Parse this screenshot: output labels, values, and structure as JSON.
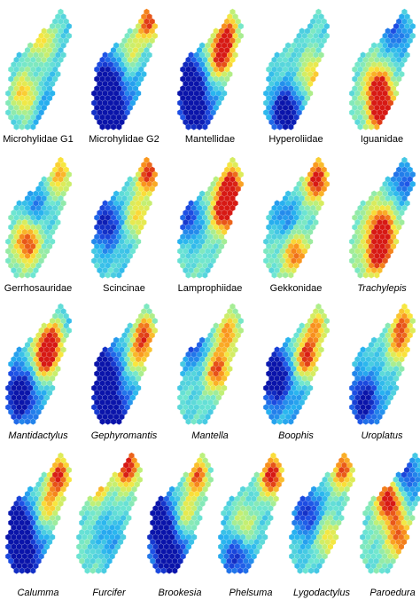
{
  "maps": [
    {
      "label": "Microhylidae G1",
      "italic": false,
      "hot": [
        [
          0.55,
          0.25,
          0.5
        ],
        [
          0.3,
          0.7,
          0.55
        ]
      ],
      "cold": [
        [
          0.7,
          0.9,
          0.4
        ]
      ],
      "base": 0.4
    },
    {
      "label": "Microhylidae G2",
      "italic": false,
      "hot": [
        [
          0.85,
          0.12,
          1.0
        ],
        [
          0.6,
          0.35,
          0.5
        ]
      ],
      "cold": [
        [
          0.25,
          0.65,
          0.9
        ],
        [
          0.3,
          0.9,
          0.9
        ]
      ],
      "base": 0.3
    },
    {
      "label": "Mantellidae",
      "italic": false,
      "hot": [
        [
          0.65,
          0.4,
          1.0
        ],
        [
          0.75,
          0.2,
          0.8
        ]
      ],
      "cold": [
        [
          0.2,
          0.6,
          0.9
        ],
        [
          0.3,
          0.85,
          0.8
        ]
      ],
      "base": 0.35
    },
    {
      "label": "Hyperoliidae",
      "italic": false,
      "hot": [
        [
          0.75,
          0.55,
          0.5
        ]
      ],
      "cold": [
        [
          0.35,
          0.85,
          1.0
        ]
      ],
      "base": 0.42
    },
    {
      "label": "Iguanidae",
      "italic": false,
      "hot": [
        [
          0.5,
          0.85,
          1.0
        ],
        [
          0.45,
          0.65,
          0.9
        ]
      ],
      "cold": [
        [
          0.7,
          0.2,
          0.5
        ]
      ],
      "base": 0.45
    },
    {
      "label": "Gerrhosauridae",
      "italic": false,
      "hot": [
        [
          0.35,
          0.7,
          0.8
        ],
        [
          0.8,
          0.15,
          0.5
        ]
      ],
      "cold": [
        [
          0.45,
          0.4,
          0.4
        ]
      ],
      "base": 0.45
    },
    {
      "label": "Scincinae",
      "italic": false,
      "hot": [
        [
          0.85,
          0.15,
          0.9
        ],
        [
          0.7,
          0.5,
          0.5
        ]
      ],
      "cold": [
        [
          0.25,
          0.55,
          0.7
        ]
      ],
      "base": 0.4
    },
    {
      "label": "Lamprophiidae",
      "italic": false,
      "hot": [
        [
          0.7,
          0.45,
          1.0
        ],
        [
          0.8,
          0.25,
          0.9
        ]
      ],
      "cold": [
        [
          0.2,
          0.5,
          0.6
        ]
      ],
      "base": 0.45
    },
    {
      "label": "Gekkonidae",
      "italic": false,
      "hot": [
        [
          0.8,
          0.2,
          0.9
        ],
        [
          0.5,
          0.8,
          0.7
        ]
      ],
      "cold": [
        [
          0.35,
          0.5,
          0.4
        ]
      ],
      "base": 0.45
    },
    {
      "label": "Trachylepis",
      "italic": true,
      "hot": [
        [
          0.5,
          0.6,
          0.9
        ],
        [
          0.45,
          0.8,
          0.8
        ]
      ],
      "cold": [
        [
          0.8,
          0.2,
          0.6
        ]
      ],
      "base": 0.5
    },
    {
      "label": "Mantidactylus",
      "italic": true,
      "hot": [
        [
          0.6,
          0.45,
          1.0
        ],
        [
          0.7,
          0.3,
          0.8
        ]
      ],
      "cold": [
        [
          0.25,
          0.75,
          0.9
        ]
      ],
      "base": 0.35
    },
    {
      "label": "Gephyromantis",
      "italic": true,
      "hot": [
        [
          0.8,
          0.25,
          0.9
        ],
        [
          0.7,
          0.45,
          0.6
        ]
      ],
      "cold": [
        [
          0.2,
          0.6,
          1.0
        ],
        [
          0.3,
          0.9,
          0.8
        ]
      ],
      "base": 0.3
    },
    {
      "label": "Mantella",
      "italic": true,
      "hot": [
        [
          0.6,
          0.55,
          0.8
        ],
        [
          0.75,
          0.25,
          0.6
        ]
      ],
      "cold": [
        [
          0.3,
          0.35,
          0.5
        ]
      ],
      "base": 0.42
    },
    {
      "label": "Boophis",
      "italic": true,
      "hot": [
        [
          0.65,
          0.45,
          1.0
        ],
        [
          0.8,
          0.2,
          0.7
        ]
      ],
      "cold": [
        [
          0.2,
          0.6,
          0.9
        ]
      ],
      "base": 0.32
    },
    {
      "label": "Uroplatus",
      "italic": true,
      "hot": [
        [
          0.75,
          0.35,
          0.6
        ],
        [
          0.8,
          0.15,
          0.6
        ]
      ],
      "cold": [
        [
          0.25,
          0.8,
          0.8
        ]
      ],
      "base": 0.38
    },
    {
      "label": "Calumma",
      "italic": true,
      "hot": [
        [
          0.8,
          0.2,
          1.0
        ],
        [
          0.65,
          0.45,
          0.6
        ]
      ],
      "cold": [
        [
          0.2,
          0.6,
          0.9
        ],
        [
          0.3,
          0.85,
          0.8
        ]
      ],
      "base": 0.33
    },
    {
      "label": "Furcifer",
      "italic": true,
      "hot": [
        [
          0.3,
          0.2,
          1.0
        ],
        [
          0.75,
          0.12,
          0.9
        ]
      ],
      "cold": [
        [
          0.5,
          0.7,
          0.3
        ]
      ],
      "base": 0.45
    },
    {
      "label": "Brookesia",
      "italic": true,
      "hot": [
        [
          0.75,
          0.2,
          0.9
        ],
        [
          0.6,
          0.5,
          0.5
        ]
      ],
      "cold": [
        [
          0.2,
          0.55,
          0.8
        ],
        [
          0.35,
          0.85,
          0.8
        ]
      ],
      "base": 0.32
    },
    {
      "label": "Phelsuma",
      "italic": true,
      "hot": [
        [
          0.8,
          0.2,
          1.0
        ],
        [
          0.4,
          0.6,
          0.4
        ]
      ],
      "cold": [
        [
          0.3,
          0.85,
          0.6
        ]
      ],
      "base": 0.4
    },
    {
      "label": "Lygodactylus",
      "italic": true,
      "hot": [
        [
          0.8,
          0.15,
          0.8
        ],
        [
          0.6,
          0.7,
          0.5
        ]
      ],
      "cold": [
        [
          0.3,
          0.5,
          0.6
        ]
      ],
      "base": 0.4
    },
    {
      "label": "Paroedura",
      "italic": true,
      "hot": [
        [
          0.45,
          0.4,
          1.0
        ],
        [
          0.6,
          0.7,
          0.7
        ]
      ],
      "cold": [
        [
          0.7,
          0.2,
          0.6
        ]
      ],
      "base": 0.45
    }
  ]
}
